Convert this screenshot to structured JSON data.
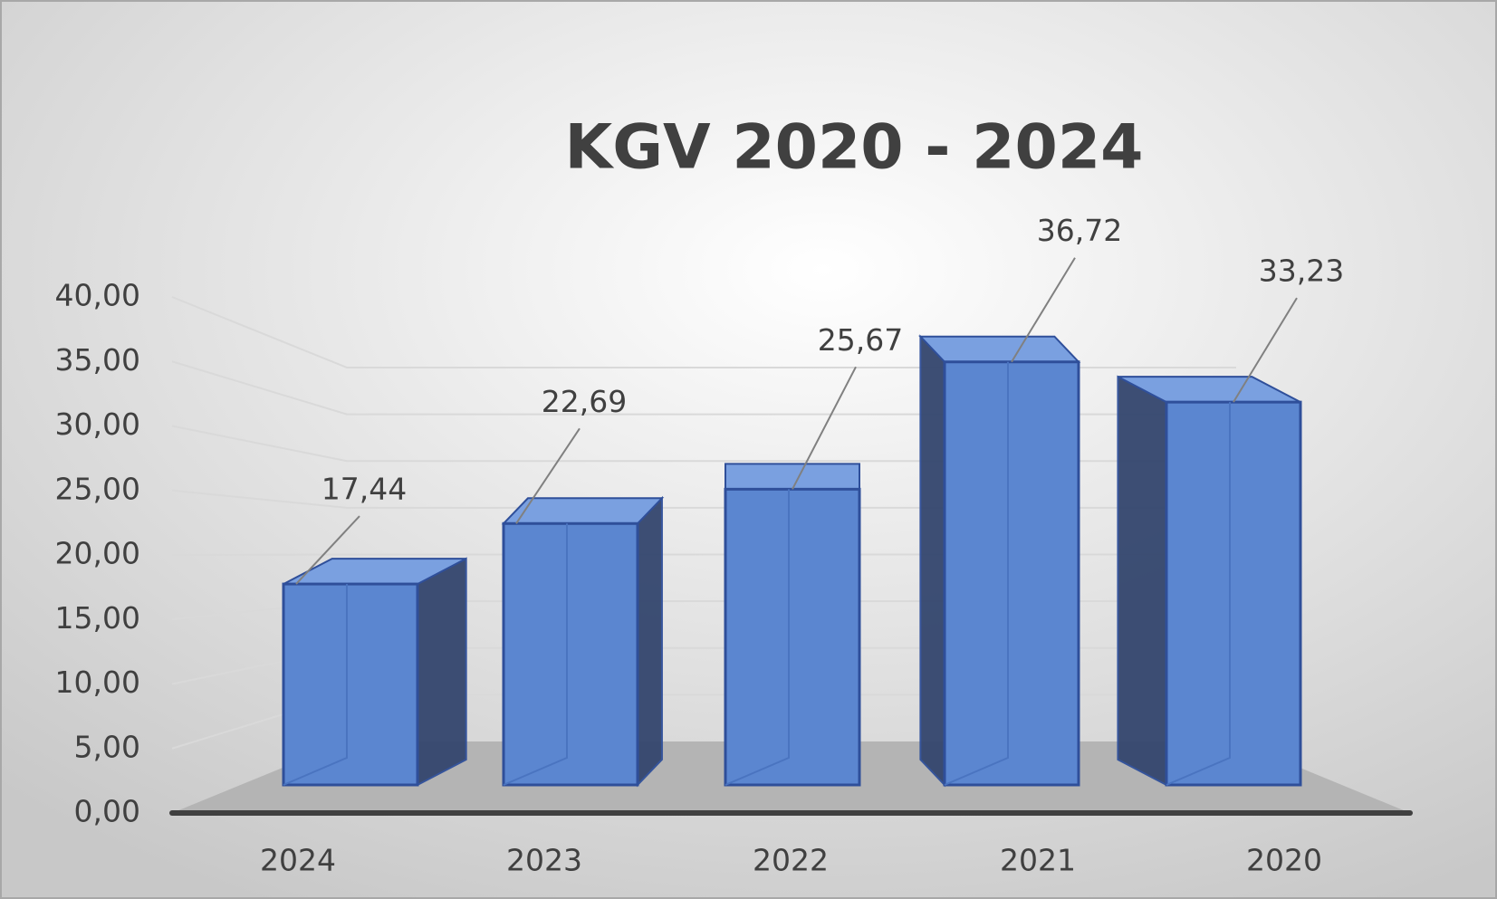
{
  "chart_data": {
    "type": "bar3d",
    "title": "KGV 2020 - 2024",
    "categories": [
      "2024",
      "2023",
      "2022",
      "2021",
      "2020"
    ],
    "values": [
      17.44,
      22.69,
      25.67,
      36.72,
      33.23
    ],
    "value_labels": [
      "17,44",
      "22,69",
      "25,67",
      "36,72",
      "33,23"
    ],
    "color": "#5b86d0",
    "ylim": [
      0,
      40
    ],
    "yticks": [
      {
        "value": 0,
        "label": "0,00"
      },
      {
        "value": 5,
        "label": "5,00"
      },
      {
        "value": 10,
        "label": "10,00"
      },
      {
        "value": 15,
        "label": "15,00"
      },
      {
        "value": 20,
        "label": "20,00"
      },
      {
        "value": 25,
        "label": "25,00"
      },
      {
        "value": 30,
        "label": "30,00"
      },
      {
        "value": 35,
        "label": "35,00"
      },
      {
        "value": 40,
        "label": "40,00"
      }
    ],
    "grid": true
  }
}
